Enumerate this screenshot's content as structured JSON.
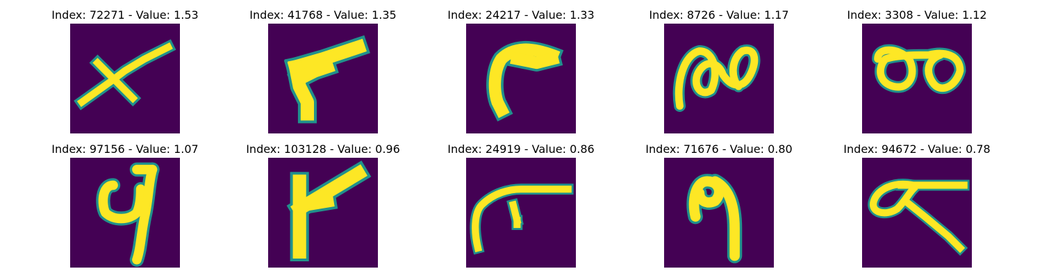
{
  "colors": {
    "background": "#440154",
    "mid": "#21918c",
    "stroke": "#fde725"
  },
  "panels": [
    {
      "title": "Index: 72271 - Value: 1.53",
      "glyph": "x-shaped-stroke"
    },
    {
      "title": "Index: 41768 - Value: 1.35",
      "glyph": "hooked-stroke"
    },
    {
      "title": "Index: 24217 - Value: 1.33",
      "glyph": "curved-c-stroke"
    },
    {
      "title": "Index: 8726 - Value: 1.17",
      "glyph": "double-loop-stroke"
    },
    {
      "title": "Index: 3308 - Value: 1.12",
      "glyph": "infinity-loop-stroke"
    },
    {
      "title": "Index: 97156 - Value: 1.07",
      "glyph": "looped-hook-stroke"
    },
    {
      "title": "Index: 103128 - Value: 0.96",
      "glyph": "angled-flag-stroke"
    },
    {
      "title": "Index: 24919 - Value: 0.86",
      "glyph": "branching-stroke"
    },
    {
      "title": "Index: 71676 - Value: 0.80",
      "glyph": "nine-like-stroke"
    },
    {
      "title": "Index: 94672 - Value: 0.78",
      "glyph": "loop-with-tail-stroke"
    }
  ]
}
